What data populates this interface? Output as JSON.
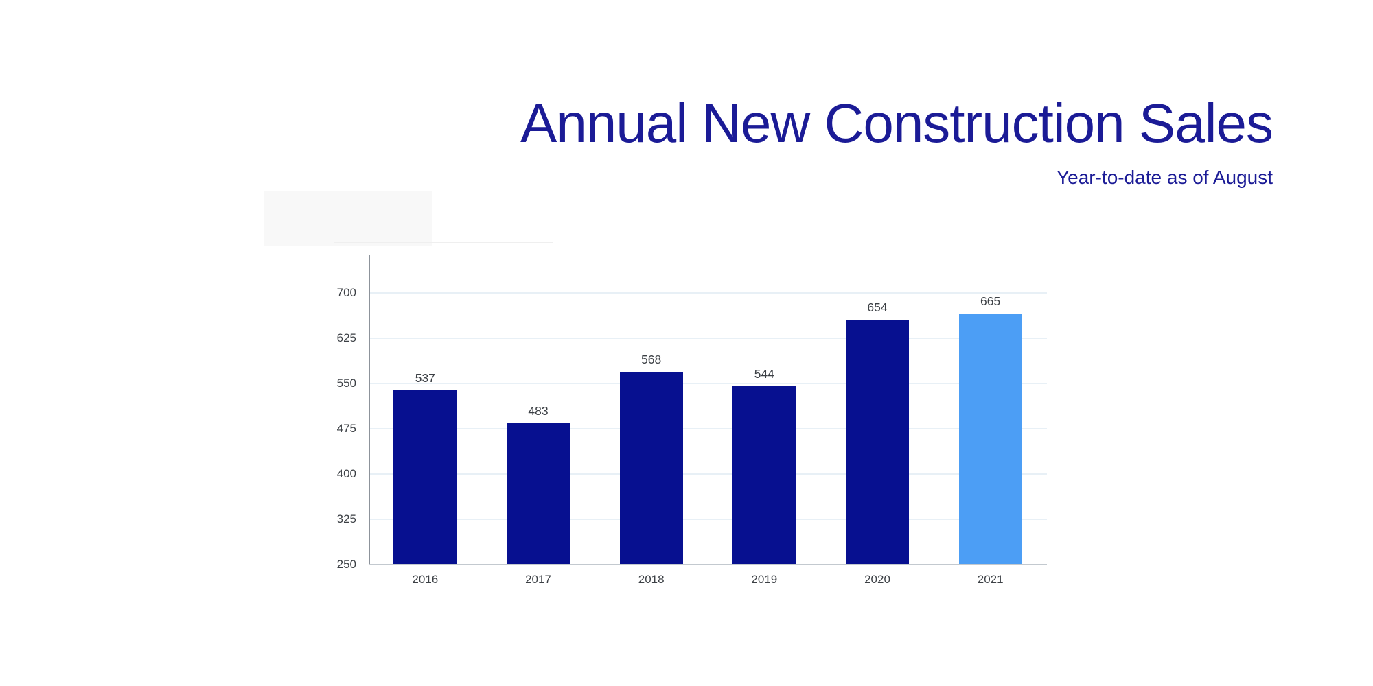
{
  "header": {
    "title": "Annual New Construction Sales",
    "subtitle": "Year-to-date as of August"
  },
  "chart_data": {
    "type": "bar",
    "title": "Annual New Construction Sales",
    "subtitle": "Year-to-date as of August",
    "categories": [
      "2016",
      "2017",
      "2018",
      "2019",
      "2020",
      "2021"
    ],
    "values": [
      537,
      483,
      568,
      544,
      654,
      665
    ],
    "highlighted_category": "2021",
    "highlighted_index": 5,
    "y_ticks": [
      250,
      325,
      400,
      475,
      550,
      625,
      700
    ],
    "ylim": [
      250,
      760
    ],
    "xlabel": "",
    "ylabel": "",
    "grid": true,
    "legend": "none",
    "value_labels_shown": true,
    "colors": {
      "title_navy": "#1b1b96",
      "bar_dark": "#071090",
      "bar_highlight_blue": "#4c9ef5",
      "tick_label": "#3c4045",
      "gridline": "#e8f0f6",
      "y_axis_line": "#8d939b",
      "baseline": "#c3c9cf"
    }
  }
}
